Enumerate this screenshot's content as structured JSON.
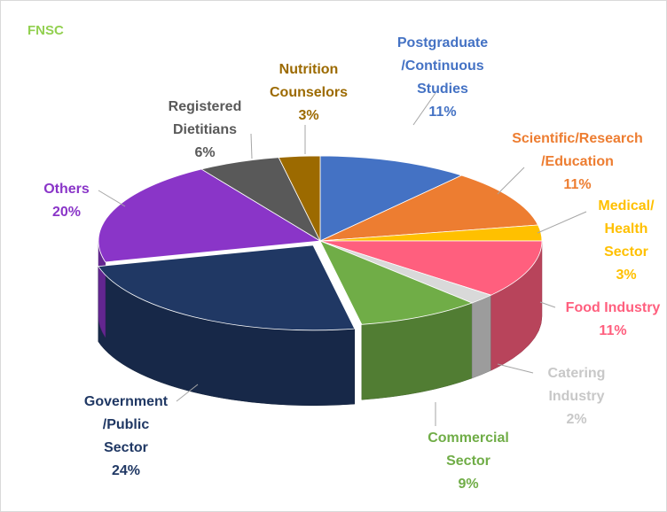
{
  "chart_data": {
    "type": "pie",
    "title": "FNSC",
    "title_color": "#92d050",
    "slices": [
      {
        "label": "Postgraduate /Continuous Studies",
        "value": 11,
        "value_label": "11%",
        "color": "#4472c4"
      },
      {
        "label": "Scientific/Research /Education",
        "value": 11,
        "value_label": "11%",
        "color": "#ed7d31"
      },
      {
        "label": "Medical/ Health Sector",
        "value": 3,
        "value_label": "3%",
        "color": "#ffc000"
      },
      {
        "label": "Food Industry",
        "value": 11,
        "value_label": "11%",
        "color": "#ff5f7e"
      },
      {
        "label": "Catering Industry",
        "value": 2,
        "value_label": "2%",
        "color": "#d9d9d9"
      },
      {
        "label": "Commercial Sector",
        "value": 9,
        "value_label": "9%",
        "color": "#70ad47"
      },
      {
        "label": "Government /Public Sector",
        "value": 24,
        "value_label": "24%",
        "color": "#203864"
      },
      {
        "label": "Others",
        "value": 20,
        "value_label": "20%",
        "color": "#8a35c8"
      },
      {
        "label": "Registered Dietitians",
        "value": 6,
        "value_label": "6%",
        "color": "#595959"
      },
      {
        "label": "Nutrition Counselors",
        "value": 3,
        "value_label": "3%",
        "color": "#9c6a00"
      }
    ],
    "labels": [
      {
        "lines": [
          "Postgraduate",
          "/Continuous",
          "Studies",
          "11%"
        ],
        "color": "#4472c4"
      },
      {
        "lines": [
          "Scientific/Research",
          "/Education",
          "11%"
        ],
        "color": "#ed7d31"
      },
      {
        "lines": [
          "Medical/",
          "Health",
          "Sector",
          "3%"
        ],
        "color": "#ffc000"
      },
      {
        "lines": [
          "Food Industry",
          "11%"
        ],
        "color": "#ff5f7e"
      },
      {
        "lines": [
          "Catering",
          "Industry",
          "2%"
        ],
        "color": "#c8c8c8"
      },
      {
        "lines": [
          "Commercial",
          "Sector",
          "9%"
        ],
        "color": "#70ad47"
      },
      {
        "lines": [
          "Government",
          "/Public",
          "Sector",
          "24%"
        ],
        "color": "#203864"
      },
      {
        "lines": [
          "Others",
          "20%"
        ],
        "color": "#8a35c8"
      },
      {
        "lines": [
          "Registered",
          "Dietitians",
          "6%"
        ],
        "color": "#595959"
      },
      {
        "lines": [
          "Nutrition",
          "Counselors",
          "3%"
        ],
        "color": "#9c6a00"
      }
    ]
  }
}
